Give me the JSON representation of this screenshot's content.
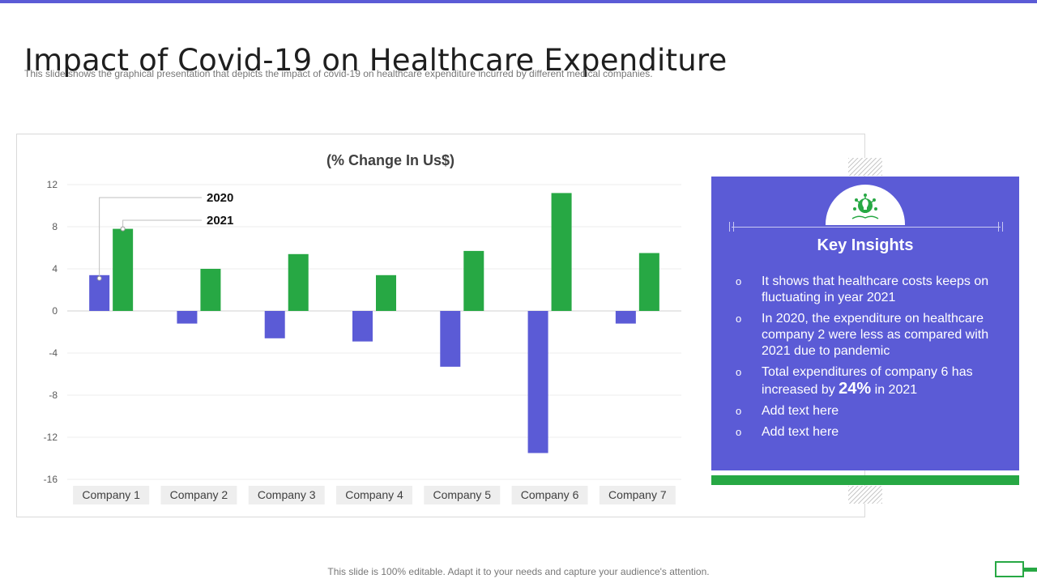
{
  "header": {
    "title": "Impact of Covid-19 on Healthcare Expenditure",
    "subtitle": "This slide shows the graphical  presentation that depicts the impact of covid-19  on healthcare  expenditure incurred  by different  medical companies."
  },
  "chart_data": {
    "type": "bar",
    "title": "(% Change In Us$)",
    "categories": [
      "Company 1",
      "Company 2",
      "Company 3",
      "Company 4",
      "Company 5",
      "Company 6",
      "Company 7"
    ],
    "series": [
      {
        "name": "2020",
        "color": "#5b5bd6",
        "values": [
          3.4,
          -1.2,
          -2.6,
          -2.9,
          -5.3,
          -13.5,
          -1.2
        ]
      },
      {
        "name": "2021",
        "color": "#27a844",
        "values": [
          7.8,
          4.0,
          5.4,
          3.4,
          5.7,
          11.2,
          5.5
        ]
      }
    ],
    "yticks": [
      12,
      8,
      4,
      0,
      -4,
      -8,
      -12,
      -16
    ],
    "ylim": [
      -16,
      12
    ],
    "xlabel": "",
    "ylabel": "",
    "grid": true,
    "legend": "callout labels near Company 1 bars"
  },
  "insights": {
    "title": "Key Insights",
    "bullet": "o",
    "item1": "It shows that healthcare costs keeps on fluctuating  in year 2021",
    "item2": "In 2020, the expenditure on healthcare company 2 were less as compared with 2021 due to pandemic",
    "item3_pre": "Total expenditures of company 6 has increased by",
    "item3_big": "24%",
    "item3_post": "in 2021",
    "item4": "Add text here",
    "item5": "Add text here"
  },
  "footer": "This slide is 100% editable. Adapt it to your needs and capture your audience's attention.",
  "colors": {
    "accent_blue": "#5b5bd6",
    "accent_green": "#27a844"
  }
}
